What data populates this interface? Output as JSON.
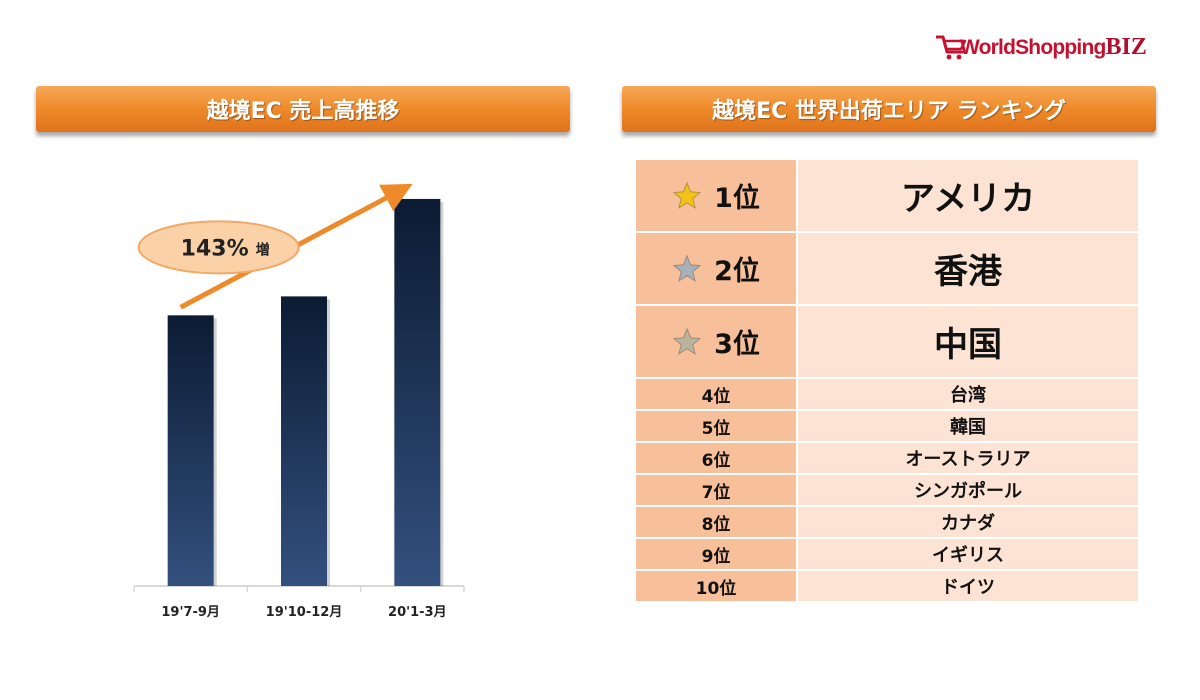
{
  "logo": {
    "text_main": "WorldShopping",
    "text_biz": "BIZ",
    "brand_color": "#c8102e"
  },
  "left_panel": {
    "title": "越境EC 売上高推移"
  },
  "right_panel": {
    "title": "越境EC 世界出荷エリア ランキング",
    "rows": [
      {
        "rank": "1位",
        "country": "アメリカ",
        "star": "gold",
        "star_color": "#f2c21b"
      },
      {
        "rank": "2位",
        "country": "香港",
        "star": "silver",
        "star_color": "#a8b0ba"
      },
      {
        "rank": "3位",
        "country": "中国",
        "star": "bronze",
        "star_color": "#b9b3a0"
      },
      {
        "rank": "4位",
        "country": "台湾"
      },
      {
        "rank": "5位",
        "country": "韓国"
      },
      {
        "rank": "6位",
        "country": "オーストラリア"
      },
      {
        "rank": "7位",
        "country": "シンガポール"
      },
      {
        "rank": "8位",
        "country": "カナダ"
      },
      {
        "rank": "9位",
        "country": "イギリス"
      },
      {
        "rank": "10位",
        "country": "ドイツ"
      }
    ]
  },
  "chart_data": {
    "type": "bar",
    "categories": [
      "19'7-9月",
      "19'10-12月",
      "20'1-3月"
    ],
    "values": [
      100,
      107,
      143
    ],
    "ylim": [
      0,
      150
    ],
    "annotation": {
      "value": "143%",
      "suffix": "増"
    },
    "grid": false,
    "colors": {
      "bar_top": "#0b1b33",
      "bar_bottom": "#33507e",
      "arrow": "#ef8a2a",
      "callout_fill": "#fbd2a8",
      "callout_stroke": "#f3a868"
    }
  }
}
